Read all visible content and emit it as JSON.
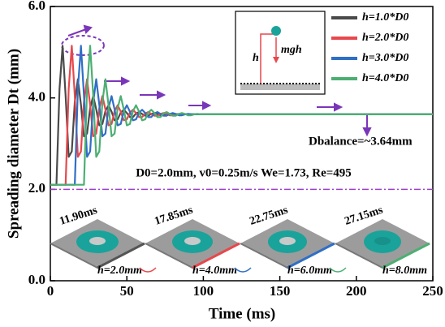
{
  "chart_data": {
    "type": "line",
    "xlabel": "Time (ms)",
    "ylabel": "Spreading diameter Dt (mm)",
    "x": [
      0,
      2,
      4,
      6,
      8,
      10,
      12,
      14,
      16,
      18,
      20,
      22,
      24,
      26,
      28,
      30,
      32,
      34,
      36,
      38,
      40,
      42,
      44,
      46,
      48,
      50,
      52,
      54,
      56,
      58,
      60,
      62,
      64,
      66,
      68,
      70,
      72,
      74,
      76,
      78,
      80,
      82,
      84,
      86,
      88,
      90,
      92,
      94,
      96,
      98,
      100,
      105,
      110,
      115,
      120,
      125,
      130,
      135,
      140,
      145,
      150,
      175,
      200,
      225,
      250
    ],
    "series": [
      {
        "name": "h=1.0*D0",
        "color": "#4a4a4a",
        "values": [
          2.1,
          2.1,
          2.1,
          4.2,
          5.14,
          4.05,
          2.71,
          2.83,
          3.91,
          4.41,
          3.85,
          3.16,
          3.22,
          3.78,
          4.04,
          3.75,
          3.4,
          3.43,
          3.71,
          3.84,
          3.7,
          3.51,
          3.53,
          3.68,
          3.74,
          3.67,
          3.58,
          3.58,
          3.66,
          3.69,
          3.65,
          3.61,
          3.61,
          3.65,
          3.67,
          3.65,
          3.62,
          3.62,
          3.64,
          3.65,
          3.64,
          3.64,
          3.64,
          3.64,
          3.64,
          3.64,
          3.64,
          3.64,
          3.64,
          3.64,
          3.64,
          3.64,
          3.64,
          3.64,
          3.64,
          3.64,
          3.64,
          3.64,
          3.64,
          3.64,
          3.64,
          3.64,
          3.64,
          3.64,
          3.64
        ]
      },
      {
        "name": "h=2.0*D0",
        "color": "#e8474c",
        "values": [
          2.1,
          2.1,
          2.1,
          2.1,
          2.1,
          2.1,
          4.2,
          5.14,
          4.05,
          2.71,
          2.83,
          3.91,
          4.41,
          3.85,
          3.16,
          3.22,
          3.78,
          4.04,
          3.75,
          3.4,
          3.43,
          3.71,
          3.84,
          3.7,
          3.51,
          3.53,
          3.68,
          3.74,
          3.67,
          3.58,
          3.58,
          3.66,
          3.69,
          3.65,
          3.61,
          3.61,
          3.65,
          3.67,
          3.65,
          3.62,
          3.62,
          3.64,
          3.65,
          3.64,
          3.64,
          3.64,
          3.64,
          3.64,
          3.64,
          3.64,
          3.64,
          3.64,
          3.64,
          3.64,
          3.64,
          3.64,
          3.64,
          3.64,
          3.64,
          3.64,
          3.64,
          3.64,
          3.64,
          3.64,
          3.64
        ]
      },
      {
        "name": "h=3.0*D0",
        "color": "#2f6fc6",
        "values": [
          2.1,
          2.1,
          2.1,
          2.1,
          2.1,
          2.1,
          2.1,
          2.1,
          2.1,
          4.2,
          5.14,
          4.05,
          2.71,
          2.83,
          3.91,
          4.41,
          3.85,
          3.16,
          3.22,
          3.78,
          4.04,
          3.75,
          3.4,
          3.43,
          3.71,
          3.84,
          3.7,
          3.51,
          3.53,
          3.68,
          3.74,
          3.67,
          3.58,
          3.58,
          3.66,
          3.69,
          3.65,
          3.61,
          3.61,
          3.65,
          3.67,
          3.65,
          3.62,
          3.62,
          3.64,
          3.65,
          3.64,
          3.64,
          3.64,
          3.64,
          3.64,
          3.64,
          3.64,
          3.64,
          3.64,
          3.64,
          3.64,
          3.64,
          3.64,
          3.64,
          3.64,
          3.64,
          3.64,
          3.64,
          3.64
        ]
      },
      {
        "name": "h=4.0*D0",
        "color": "#4caf72",
        "values": [
          2.1,
          2.1,
          2.1,
          2.1,
          2.1,
          2.1,
          2.1,
          2.1,
          2.1,
          2.1,
          2.1,
          2.1,
          4.2,
          5.14,
          4.05,
          2.71,
          2.83,
          3.91,
          4.41,
          3.85,
          3.16,
          3.22,
          3.78,
          4.04,
          3.75,
          3.4,
          3.43,
          3.71,
          3.84,
          3.7,
          3.51,
          3.53,
          3.68,
          3.74,
          3.67,
          3.58,
          3.58,
          3.66,
          3.69,
          3.65,
          3.61,
          3.61,
          3.65,
          3.67,
          3.65,
          3.62,
          3.62,
          3.64,
          3.65,
          3.64,
          3.64,
          3.64,
          3.64,
          3.64,
          3.64,
          3.64,
          3.64,
          3.64,
          3.64,
          3.64,
          3.64,
          3.64,
          3.64,
          3.64,
          3.64
        ]
      }
    ],
    "xlim": [
      0,
      250
    ],
    "xticks": [
      0,
      50,
      100,
      150,
      200,
      250
    ],
    "ylim": [
      0,
      6
    ],
    "yticks": [
      {
        "value": 0,
        "label": "0.0"
      },
      {
        "value": 2,
        "label": "2.0"
      },
      {
        "value": 4,
        "label": "4.0"
      },
      {
        "value": 6,
        "label": "6.0"
      }
    ],
    "reference_line": {
      "value": 2,
      "color": "#9b3fc8"
    },
    "legend": "upper right",
    "annotations": {
      "balance": "Dbalance=~3.64mm",
      "conditions": "D0=2.0mm, v0=0.25m/s  We=1.73, Re=495",
      "energy": "mgh",
      "height": "h"
    },
    "panels": [
      {
        "time": "11.90ms",
        "height": "h=2.0mm"
      },
      {
        "time": "17.85ms",
        "height": "h=4.0mm"
      },
      {
        "time": "22.75ms",
        "height": "h=6.0mm"
      },
      {
        "time": "27.15ms",
        "height": "h=8.0mm"
      }
    ]
  }
}
